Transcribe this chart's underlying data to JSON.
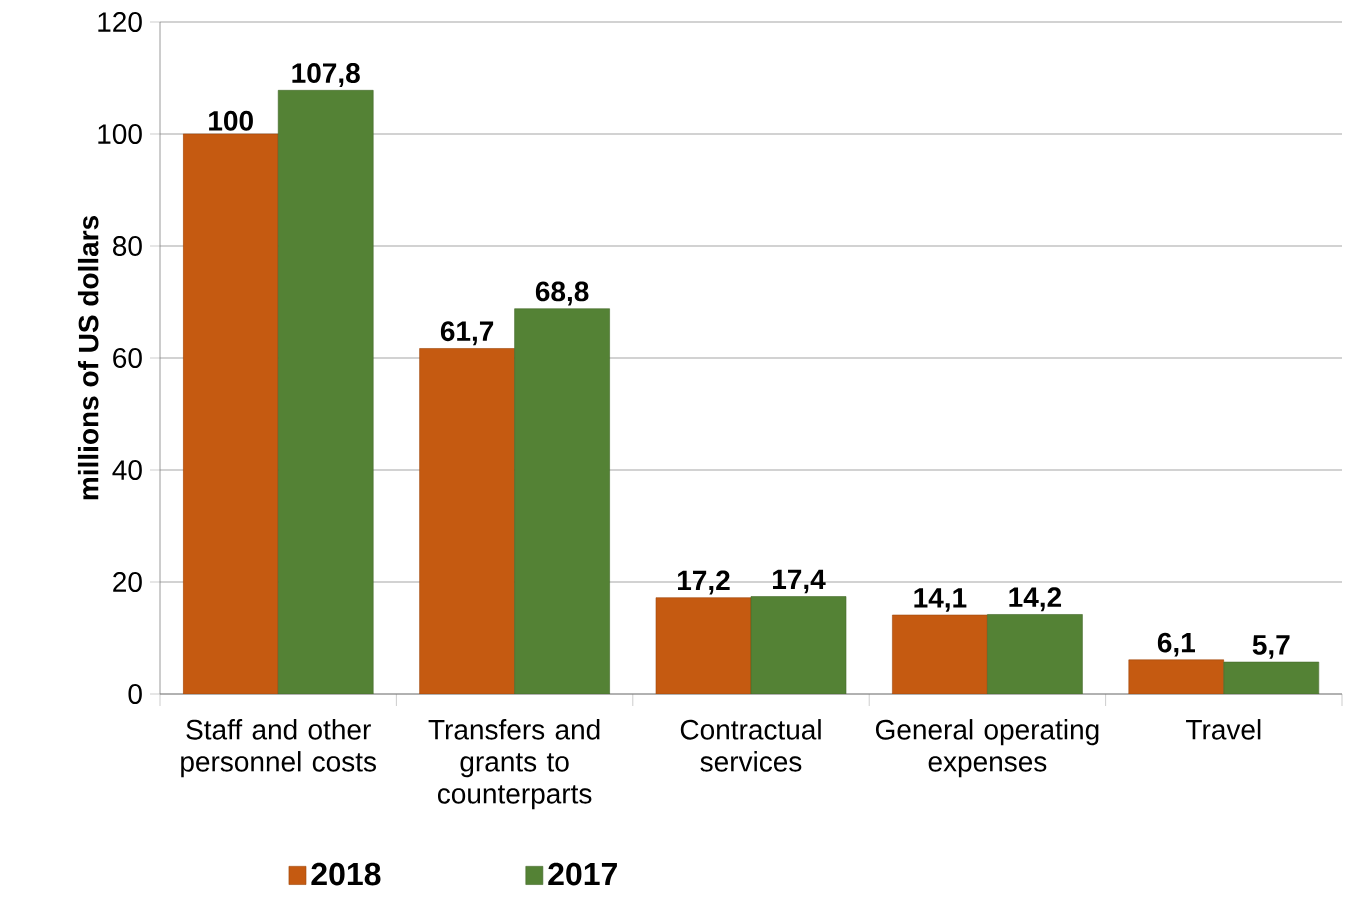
{
  "chart_data": {
    "type": "bar",
    "ylabel": "millions of US dollars",
    "categories": [
      "Staff and other personnel costs",
      "Transfers and grants to counterparts",
      "Contractual services",
      "General operating expenses",
      "Travel"
    ],
    "series": [
      {
        "name": "2018",
        "color": "#c55a11",
        "values": [
          100,
          61.7,
          17.2,
          14.1,
          6.1
        ],
        "value_labels": [
          "100",
          "61,7",
          "17,2",
          "14,1",
          "6,1"
        ]
      },
      {
        "name": "2017",
        "color": "#548235",
        "values": [
          107.8,
          68.8,
          17.4,
          14.2,
          5.7
        ],
        "value_labels": [
          "107,8",
          "68,8",
          "17,4",
          "14,2",
          "5,7"
        ]
      }
    ],
    "ylim": [
      0,
      120
    ],
    "yticks": [
      0,
      20,
      40,
      60,
      80,
      100,
      120
    ],
    "grid": "y",
    "legend": "bottom"
  }
}
